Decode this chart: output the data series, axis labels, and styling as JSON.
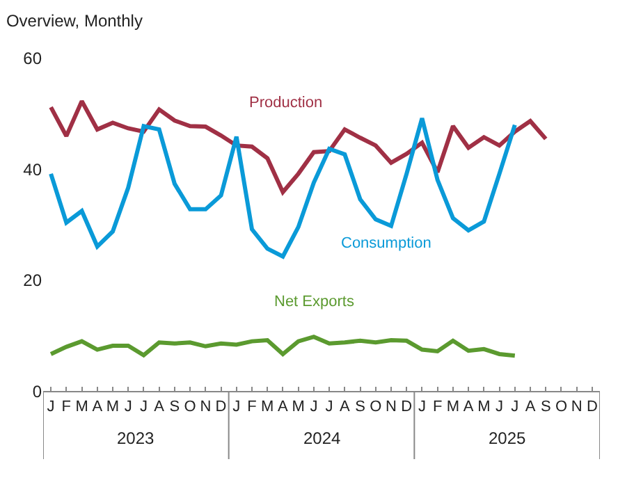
{
  "chart_data": {
    "type": "line",
    "title": "Overview, Monthly",
    "categories": [
      "J",
      "F",
      "M",
      "A",
      "M",
      "J",
      "J",
      "A",
      "S",
      "O",
      "N",
      "D",
      "J",
      "F",
      "M",
      "A",
      "M",
      "J",
      "J",
      "A",
      "S",
      "O",
      "N",
      "D",
      "J",
      "F",
      "M",
      "A",
      "M",
      "J",
      "J",
      "A",
      "S",
      "O",
      "N",
      "D"
    ],
    "series": [
      {
        "name": "Production",
        "color": "#a03045",
        "values": [
          51.2,
          46.0,
          52.3,
          47.2,
          48.4,
          47.4,
          46.8,
          50.8,
          48.8,
          47.8,
          47.7,
          46.1,
          44.3,
          44.1,
          42.0,
          35.9,
          39.2,
          43.1,
          43.3,
          47.2,
          45.7,
          44.3,
          41.2,
          42.8,
          44.8,
          39.5,
          47.8,
          43.9,
          45.8,
          44.3,
          46.8,
          48.7,
          45.5,
          null,
          null,
          null
        ]
      },
      {
        "name": "Consumption",
        "color": "#0a9ad8",
        "values": [
          39.2,
          30.4,
          32.5,
          26.1,
          28.8,
          36.7,
          47.8,
          47.2,
          37.4,
          32.8,
          32.8,
          35.3,
          45.9,
          29.2,
          25.7,
          24.3,
          29.6,
          37.6,
          43.7,
          42.7,
          34.6,
          31.0,
          29.8,
          39.2,
          49.2,
          38.1,
          31.2,
          29.0,
          30.6,
          39.2,
          48.0,
          null,
          null,
          null,
          null,
          null
        ]
      },
      {
        "name": "Net Exports",
        "color": "#5b9a2f",
        "values": [
          6.7,
          8.0,
          9.0,
          7.5,
          8.2,
          8.2,
          6.5,
          8.8,
          8.6,
          8.8,
          8.1,
          8.6,
          8.4,
          9.0,
          9.2,
          6.7,
          9.0,
          9.8,
          8.6,
          8.8,
          9.1,
          8.8,
          9.2,
          9.1,
          7.5,
          7.2,
          9.1,
          7.3,
          7.6,
          6.7,
          6.4,
          null,
          null,
          null,
          null,
          null
        ]
      }
    ],
    "ylim": [
      0,
      60
    ],
    "yticks": [
      0,
      20,
      40,
      60
    ],
    "legend": false,
    "marker": "none",
    "line_style": "solid",
    "annotations": [
      "2023",
      "2024",
      "2025"
    ]
  }
}
